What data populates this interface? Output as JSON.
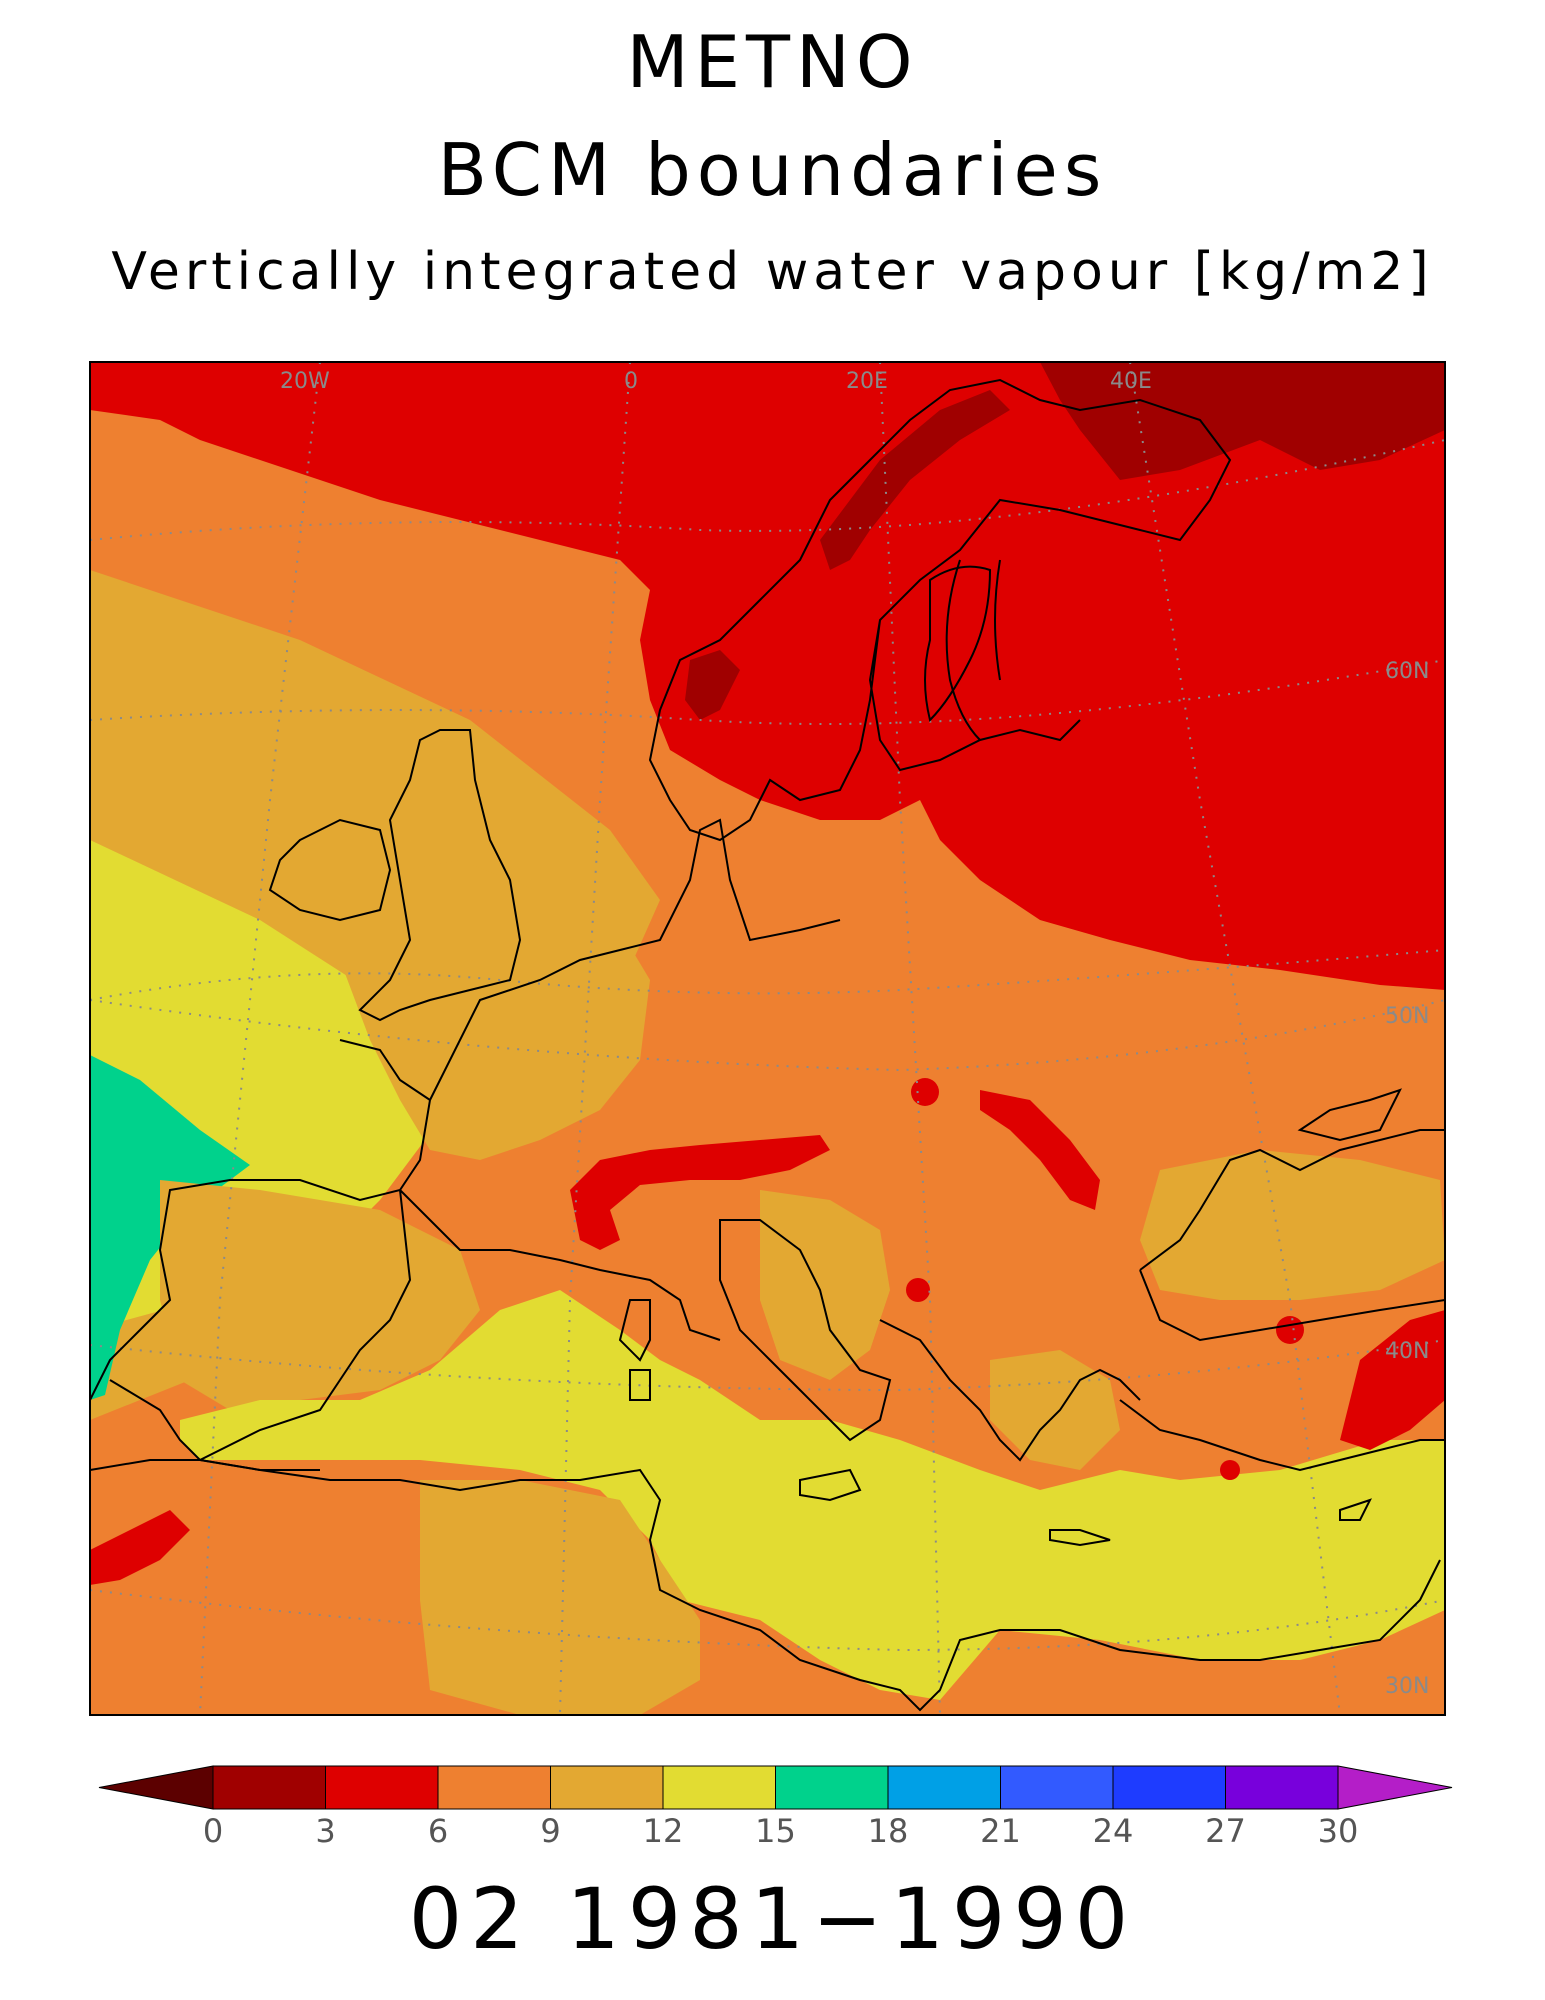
{
  "titles": {
    "line1": "METNO",
    "line2": "BCM boundaries",
    "line3": "Vertically integrated water vapour [kg/m2]"
  },
  "period_label": "02 1981−1990",
  "graticule_labels": {
    "longitude": [
      "20W",
      "0",
      "20E",
      "40E"
    ],
    "latitude": [
      "60N",
      "50N",
      "40N",
      "30N"
    ]
  },
  "colorbar": {
    "ticks": [
      "0",
      "3",
      "6",
      "9",
      "12",
      "15",
      "18",
      "21",
      "24",
      "27",
      "30"
    ],
    "colors": [
      "#5c0000",
      "#a00000",
      "#de0000",
      "#ee8030",
      "#e3a832",
      "#e2dc32",
      "#00d28c",
      "#00a0e6",
      "#325aff",
      "#1e3cff",
      "#7800dc",
      "#b41ec8"
    ]
  },
  "colors": {
    "ocean_low": "#e2dc32",
    "ocean_mid": "#e3a832",
    "land_mid": "#ee8030",
    "north_high": "#de0000",
    "mountain_peak": "#a00000",
    "atlantic_max": "#00d28c",
    "coastline": "#000000",
    "graticule": "#8a8a8a"
  }
}
